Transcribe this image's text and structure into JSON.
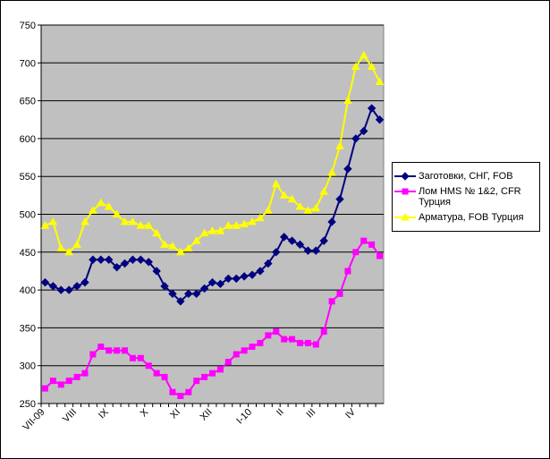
{
  "chart_data": {
    "type": "line",
    "categories": [
      "VII-09",
      null,
      null,
      null,
      "VIII",
      null,
      null,
      null,
      "IX",
      null,
      null,
      null,
      null,
      "X",
      null,
      null,
      null,
      "XI",
      null,
      null,
      null,
      "XII",
      null,
      null,
      null,
      null,
      "I-10",
      null,
      null,
      null,
      "II",
      null,
      null,
      null,
      "III",
      null,
      null,
      null,
      null,
      "IV",
      null,
      null,
      null
    ],
    "series": [
      {
        "name": "Заготовки, СНГ, FOB",
        "color": "#000080",
        "marker": "diamond",
        "values": [
          410,
          405,
          400,
          400,
          405,
          410,
          440,
          440,
          440,
          430,
          435,
          440,
          440,
          437,
          425,
          405,
          395,
          385,
          395,
          395,
          402,
          410,
          408,
          415,
          415,
          418,
          420,
          425,
          435,
          450,
          470,
          465,
          460,
          452,
          452,
          465,
          490,
          520,
          560,
          600,
          610,
          640,
          625
        ]
      },
      {
        "name": "Лом HMS № 1&2, CFR Турция",
        "color": "#ff00ff",
        "marker": "square",
        "values": [
          270,
          280,
          275,
          280,
          285,
          290,
          315,
          325,
          320,
          320,
          320,
          310,
          310,
          300,
          290,
          285,
          265,
          260,
          265,
          280,
          285,
          290,
          295,
          305,
          315,
          320,
          325,
          330,
          340,
          345,
          335,
          335,
          330,
          330,
          328,
          345,
          385,
          395,
          425,
          450,
          465,
          460,
          445
        ]
      },
      {
        "name": "Арматура, FOB Турция",
        "color": "#ffff00",
        "marker": "triangle",
        "values": [
          485,
          490,
          455,
          450,
          460,
          490,
          505,
          515,
          510,
          500,
          490,
          490,
          485,
          485,
          475,
          460,
          458,
          450,
          455,
          465,
          475,
          478,
          478,
          485,
          485,
          487,
          490,
          495,
          505,
          540,
          525,
          520,
          510,
          505,
          508,
          530,
          555,
          590,
          650,
          695,
          710,
          695,
          675
        ]
      }
    ],
    "ylim": [
      250,
      750
    ],
    "yticks": [
      250,
      300,
      350,
      400,
      450,
      500,
      550,
      600,
      650,
      700,
      750
    ],
    "grid": true,
    "legend": "right"
  }
}
